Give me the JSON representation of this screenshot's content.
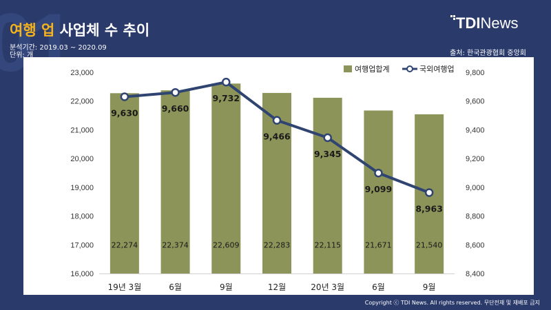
{
  "header": {
    "title_accent": "여행 업",
    "title_rest": "사업체 수 추이",
    "period": "분석기간: 2019.03 ~ 2020.09",
    "unit": "단위: 개",
    "source": "출처: 한국관광협회 중앙회",
    "bg_number": "01"
  },
  "logo": {
    "bold": "TDI",
    "light": "News"
  },
  "footer": {
    "copyright": "Copyright ⓒ TDI News. All rights reserved. 무단전재 및 재배포 금지"
  },
  "colors": {
    "background": "#2a3a6b",
    "bar": "#8c945a",
    "line": "#2f4470",
    "accent": "#f5b41b"
  },
  "chart_data": {
    "type": "bar",
    "categories": [
      "19년 3월",
      "6월",
      "9월",
      "12월",
      "20년 3월",
      "6월",
      "9월"
    ],
    "series": [
      {
        "name": "여행업합계",
        "type": "bar",
        "axis": "left",
        "values": [
          22274,
          22374,
          22609,
          22283,
          22115,
          21671,
          21540
        ],
        "labels": [
          "22,274",
          "22,374",
          "22,609",
          "22,283",
          "22,115",
          "21,671",
          "21,540"
        ]
      },
      {
        "name": "국외여행업",
        "type": "line",
        "axis": "right",
        "values": [
          9630,
          9660,
          9732,
          9466,
          9345,
          9099,
          8963
        ],
        "labels": [
          "9,630",
          "9,660",
          "9,732",
          "9,466",
          "9,345",
          "9,099",
          "8,963"
        ]
      }
    ],
    "y_left": {
      "min": 16000,
      "max": 23000,
      "ticks": [
        "16,000",
        "17,000",
        "18,000",
        "19,000",
        "20,000",
        "21,000",
        "22,000",
        "23,000"
      ]
    },
    "y_right": {
      "min": 8400,
      "max": 9800,
      "ticks": [
        "8,400",
        "8,600",
        "8,800",
        "9,000",
        "9,200",
        "9,400",
        "9,600",
        "9,800"
      ]
    },
    "legend_position": "top-right",
    "grid": false
  }
}
